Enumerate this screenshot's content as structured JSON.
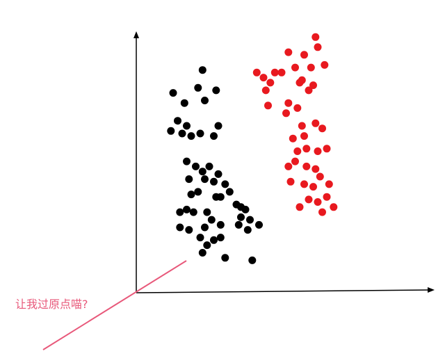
{
  "annotation": "让我过原点喵?",
  "colors": {
    "axis": "#000000",
    "class_a": "#000000",
    "class_b": "#e8191f",
    "line": "#e8587a",
    "annotation": "#e8587a"
  },
  "chart_data": {
    "type": "scatter",
    "title": "",
    "xlabel": "",
    "ylabel": "",
    "xlim": [
      0,
      100
    ],
    "ylim": [
      0,
      100
    ],
    "grid": false,
    "series": [
      {
        "color": "#000000",
        "points": [
          [
            25,
            82
          ],
          [
            17,
            69
          ],
          [
            18,
            60
          ],
          [
            12,
            73
          ],
          [
            23,
            75
          ],
          [
            26,
            70
          ],
          [
            31,
            74
          ],
          [
            14,
            62
          ],
          [
            11,
            58
          ],
          [
            16,
            57
          ],
          [
            20,
            56
          ],
          [
            24,
            57
          ],
          [
            30,
            56
          ],
          [
            32,
            60
          ],
          [
            18,
            46
          ],
          [
            22,
            44
          ],
          [
            28,
            44
          ],
          [
            32,
            41
          ],
          [
            35,
            37
          ],
          [
            37,
            34
          ],
          [
            33,
            32
          ],
          [
            19,
            39
          ],
          [
            20,
            33
          ],
          [
            23,
            34
          ],
          [
            25,
            42
          ],
          [
            26,
            39
          ],
          [
            30,
            38
          ],
          [
            31,
            32
          ],
          [
            18,
            27
          ],
          [
            15,
            26
          ],
          [
            21,
            26
          ],
          [
            27,
            26
          ],
          [
            29,
            23
          ],
          [
            33,
            21
          ],
          [
            40,
            29
          ],
          [
            42,
            24
          ],
          [
            44,
            27
          ],
          [
            46,
            23
          ],
          [
            41,
            21
          ],
          [
            45,
            19
          ],
          [
            50,
            21
          ],
          [
            15,
            20
          ],
          [
            19,
            19
          ],
          [
            24,
            16
          ],
          [
            26,
            20
          ],
          [
            27,
            13
          ],
          [
            33,
            16
          ],
          [
            25,
            10
          ],
          [
            30,
            15
          ],
          [
            35,
            8
          ],
          [
            47,
            7
          ],
          [
            42,
            28
          ]
        ]
      },
      {
        "color": "#e8191f",
        "points": [
          [
            63,
            89
          ],
          [
            60,
            81
          ],
          [
            70,
            88
          ],
          [
            66,
            83
          ],
          [
            68,
            77
          ],
          [
            75,
            95
          ],
          [
            76,
            91
          ],
          [
            73,
            83
          ],
          [
            79,
            84
          ],
          [
            52,
            79
          ],
          [
            55,
            77
          ],
          [
            57,
            81
          ],
          [
            49,
            81
          ],
          [
            53,
            74
          ],
          [
            54,
            68
          ],
          [
            63,
            69
          ],
          [
            62,
            65
          ],
          [
            67,
            67
          ],
          [
            69,
            78
          ],
          [
            72,
            74
          ],
          [
            74,
            76
          ],
          [
            69,
            60
          ],
          [
            75,
            61
          ],
          [
            70,
            56
          ],
          [
            78,
            59
          ],
          [
            65,
            55
          ],
          [
            67,
            50
          ],
          [
            71,
            51
          ],
          [
            76,
            50
          ],
          [
            80,
            51
          ],
          [
            63,
            44
          ],
          [
            66,
            46
          ],
          [
            71,
            44
          ],
          [
            75,
            43
          ],
          [
            64,
            38
          ],
          [
            70,
            37
          ],
          [
            74,
            36
          ],
          [
            77,
            40
          ],
          [
            80,
            32
          ],
          [
            81,
            37
          ],
          [
            76,
            30
          ],
          [
            83,
            28
          ],
          [
            78,
            26
          ],
          [
            68,
            28
          ],
          [
            72,
            31
          ]
        ]
      }
    ]
  }
}
